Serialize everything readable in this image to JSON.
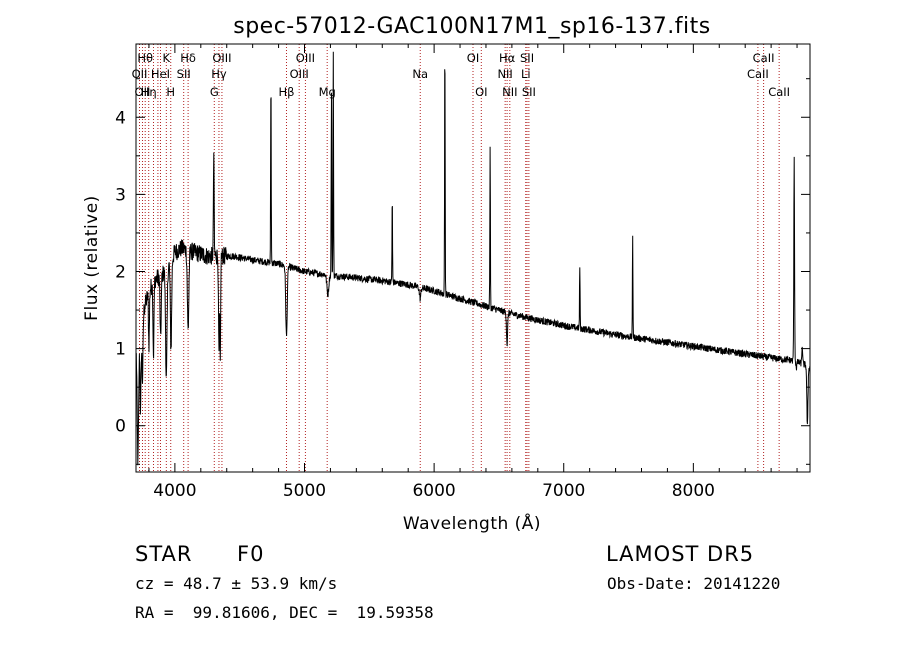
{
  "chart_data": {
    "type": "line",
    "title": "spec-57012-GAC100N17M1_sp16-137.fits",
    "xlabel": "Wavelength (Å)",
    "ylabel": "Flux (relative)",
    "xlim": [
      3700,
      8900
    ],
    "ylim": [
      -0.6,
      4.95
    ],
    "xticks": [
      4000,
      5000,
      6000,
      7000,
      8000
    ],
    "yticks": [
      0,
      1,
      2,
      3,
      4
    ],
    "grid": false,
    "legend": "none",
    "colors": {
      "spectrum": "#000000",
      "line_marker": "#b22222"
    },
    "continuum": [
      [
        3700,
        1.0
      ],
      [
        3760,
        1.5
      ],
      [
        3800,
        1.75
      ],
      [
        3850,
        1.9
      ],
      [
        3900,
        1.95
      ],
      [
        3960,
        2.1
      ],
      [
        4000,
        2.25
      ],
      [
        4050,
        2.3
      ],
      [
        4150,
        2.25
      ],
      [
        4250,
        2.2
      ],
      [
        4350,
        2.2
      ],
      [
        4450,
        2.2
      ],
      [
        4600,
        2.15
      ],
      [
        4800,
        2.1
      ],
      [
        5000,
        2.0
      ],
      [
        5200,
        1.95
      ],
      [
        5400,
        1.92
      ],
      [
        5600,
        1.88
      ],
      [
        5800,
        1.83
      ],
      [
        6000,
        1.75
      ],
      [
        6200,
        1.65
      ],
      [
        6400,
        1.55
      ],
      [
        6600,
        1.45
      ],
      [
        6800,
        1.37
      ],
      [
        7000,
        1.3
      ],
      [
        7200,
        1.24
      ],
      [
        7400,
        1.18
      ],
      [
        7600,
        1.13
      ],
      [
        7800,
        1.08
      ],
      [
        8000,
        1.03
      ],
      [
        8200,
        0.98
      ],
      [
        8400,
        0.93
      ],
      [
        8600,
        0.88
      ],
      [
        8750,
        0.85
      ],
      [
        8850,
        0.8
      ],
      [
        8900,
        0.75
      ]
    ],
    "features": [
      {
        "x": 3715,
        "y": -0.45,
        "w": 8
      },
      {
        "x": 3735,
        "y": 0.2,
        "w": 6
      },
      {
        "x": 3750,
        "y": 0.6,
        "w": 6
      },
      {
        "x": 3800,
        "y": 1.05,
        "w": 5
      },
      {
        "x": 3835,
        "y": 0.9,
        "w": 5
      },
      {
        "x": 3890,
        "y": 1.1,
        "w": 6
      },
      {
        "x": 3934,
        "y": 0.6,
        "w": 8
      },
      {
        "x": 3970,
        "y": 1.0,
        "w": 7
      },
      {
        "x": 4102,
        "y": 1.25,
        "w": 8
      },
      {
        "x": 4300,
        "y": 3.55,
        "w": 4
      },
      {
        "x": 4340,
        "y": 0.95,
        "w": 5
      },
      {
        "x": 4350,
        "y": 0.75,
        "w": 4
      },
      {
        "x": 4741,
        "y": 4.5,
        "w": 3
      },
      {
        "x": 4861,
        "y": 1.15,
        "w": 8
      },
      {
        "x": 5180,
        "y": 1.7,
        "w": 10
      },
      {
        "x": 5208,
        "y": 4.3,
        "w": 3
      },
      {
        "x": 5222,
        "y": 4.85,
        "w": 3
      },
      {
        "x": 5677,
        "y": 2.95,
        "w": 3
      },
      {
        "x": 5892,
        "y": 1.65,
        "w": 8
      },
      {
        "x": 6083,
        "y": 4.95,
        "w": 3
      },
      {
        "x": 6432,
        "y": 3.6,
        "w": 3
      },
      {
        "x": 6563,
        "y": 1.05,
        "w": 6
      },
      {
        "x": 7124,
        "y": 2.05,
        "w": 3
      },
      {
        "x": 7532,
        "y": 2.45,
        "w": 3
      },
      {
        "x": 8778,
        "y": 3.45,
        "w": 4
      },
      {
        "x": 8795,
        "y": 0.75,
        "w": 4
      },
      {
        "x": 8840,
        "y": 1.05,
        "w": 4
      },
      {
        "x": 8880,
        "y": 0.0,
        "w": 6
      }
    ],
    "lines": [
      {
        "x": 3727,
        "label": "OII",
        "row": 2
      },
      {
        "x": 3750,
        "label": "OII",
        "row": 3
      },
      {
        "x": 3771,
        "label": "Hθ",
        "row": 1
      },
      {
        "x": 3798,
        "label": "Hη",
        "row": 3
      },
      {
        "x": 3835,
        "label": "",
        "row": 0
      },
      {
        "x": 3869,
        "label": "",
        "row": 0
      },
      {
        "x": 3889,
        "label": "HeI",
        "row": 2
      },
      {
        "x": 3934,
        "label": "K",
        "row": 1
      },
      {
        "x": 3968,
        "label": "H",
        "row": 3
      },
      {
        "x": 4068,
        "label": "SII",
        "row": 2
      },
      {
        "x": 4102,
        "label": "Hδ",
        "row": 1
      },
      {
        "x": 4304,
        "label": "G",
        "row": 3
      },
      {
        "x": 4340,
        "label": "Hγ",
        "row": 2
      },
      {
        "x": 4363,
        "label": "OIII",
        "row": 1
      },
      {
        "x": 4861,
        "label": "Hβ",
        "row": 3
      },
      {
        "x": 4959,
        "label": "OIII",
        "row": 2
      },
      {
        "x": 5007,
        "label": "OIII",
        "row": 1
      },
      {
        "x": 5175,
        "label": "Mg",
        "row": 3
      },
      {
        "x": 5893,
        "label": "Na",
        "row": 2
      },
      {
        "x": 6300,
        "label": "OI",
        "row": 1
      },
      {
        "x": 6364,
        "label": "OI",
        "row": 3
      },
      {
        "x": 6548,
        "label": "NII",
        "row": 2
      },
      {
        "x": 6563,
        "label": "Hα",
        "row": 1
      },
      {
        "x": 6584,
        "label": "NII",
        "row": 3
      },
      {
        "x": 6707,
        "label": "Li",
        "row": 2
      },
      {
        "x": 6717,
        "label": "SII",
        "row": 1
      },
      {
        "x": 6731,
        "label": "SII",
        "row": 3
      },
      {
        "x": 8498,
        "label": "CaII",
        "row": 2
      },
      {
        "x": 8542,
        "label": "CaII",
        "row": 1
      },
      {
        "x": 8662,
        "label": "CaII",
        "row": 3
      }
    ]
  },
  "info": {
    "object_class": "STAR",
    "subclass": "F0",
    "survey": "LAMOST DR5",
    "redshift": "cz = 48.7 ± 53.9 km/s",
    "obs_date": "Obs-Date: 20141220",
    "coords": "RA =  99.81606, DEC =  19.59358"
  }
}
